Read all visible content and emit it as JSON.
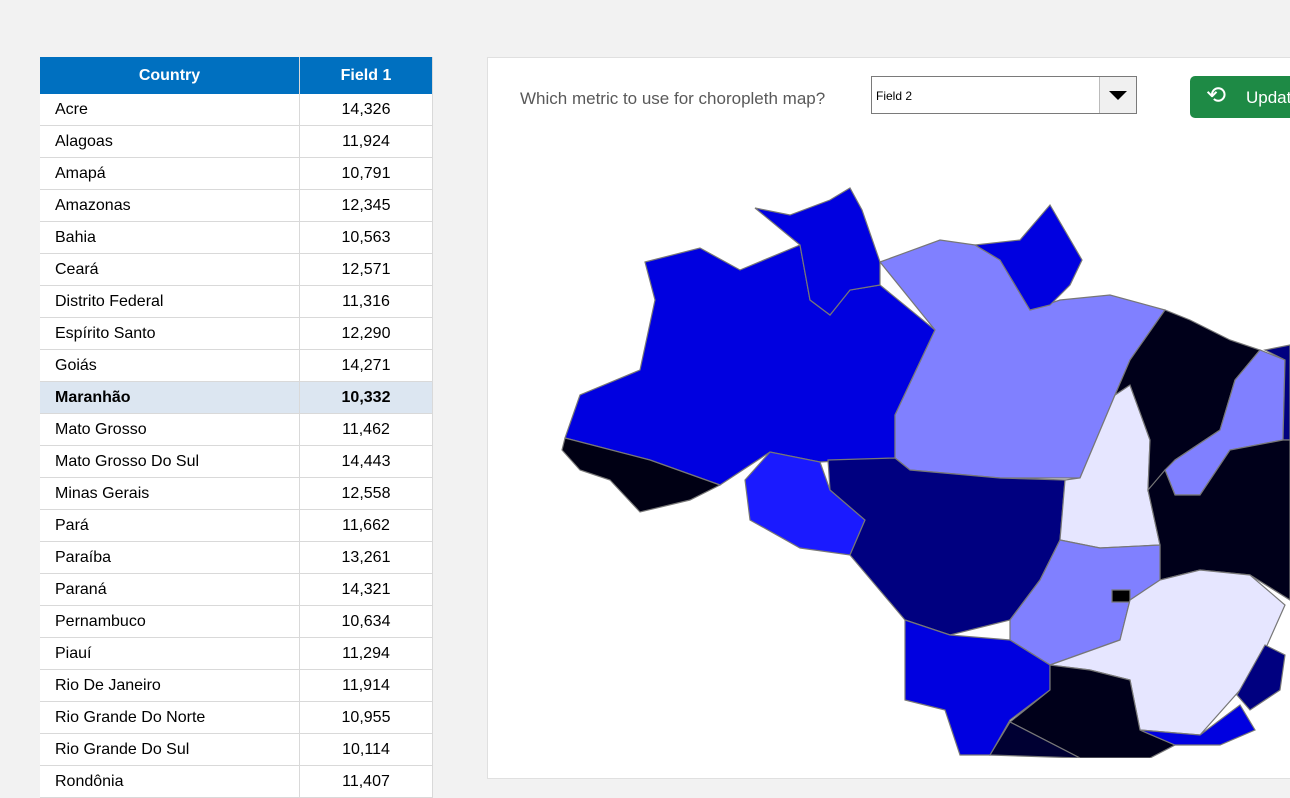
{
  "table": {
    "headers": [
      "Country",
      "Field 1"
    ],
    "selected": "Maranhão",
    "rows": [
      [
        "Acre",
        "14,326"
      ],
      [
        "Alagoas",
        "11,924"
      ],
      [
        "Amapá",
        "10,791"
      ],
      [
        "Amazonas",
        "12,345"
      ],
      [
        "Bahia",
        "10,563"
      ],
      [
        "Ceará",
        "12,571"
      ],
      [
        "Distrito Federal",
        "11,316"
      ],
      [
        "Espírito Santo",
        "12,290"
      ],
      [
        "Goiás",
        "14,271"
      ],
      [
        "Maranhão",
        "10,332"
      ],
      [
        "Mato Grosso",
        "11,462"
      ],
      [
        "Mato Grosso Do Sul",
        "14,443"
      ],
      [
        "Minas Gerais",
        "12,558"
      ],
      [
        "Pará",
        "11,662"
      ],
      [
        "Paraíba",
        "13,261"
      ],
      [
        "Paraná",
        "14,321"
      ],
      [
        "Pernambuco",
        "10,634"
      ],
      [
        "Piauí",
        "11,294"
      ],
      [
        "Rio De Janeiro",
        "11,914"
      ],
      [
        "Rio Grande Do Norte",
        "10,955"
      ],
      [
        "Rio Grande Do Sul",
        "10,114"
      ],
      [
        "Rondônia",
        "11,407"
      ]
    ]
  },
  "controls": {
    "question": "Which metric to use for choropleth map?",
    "metric_selected": "Field 2",
    "update_label": "Update",
    "update_icon": "refresh-icon"
  },
  "map": {
    "colors": {
      "Amazonas": "#0000e0",
      "Acre": "#000014",
      "Roraima": "#0000e0",
      "Pará": "#8080ff",
      "Amapá": "#0000e0",
      "Rondônia": "#1a1aff",
      "Mato Grosso": "#000080",
      "Tocantins": "#e6e6ff",
      "Maranhão": "#00001a",
      "Piauí": "#8080ff",
      "Ceará": "#000080",
      "Bahia": "#00001a",
      "Goiás": "#8080ff",
      "Distrito Federal": "#000000",
      "Minas Gerais": "#e6e6ff",
      "Mato Grosso Do Sul": "#0000e0",
      "Espírito Santo": "#000080",
      "São Paulo": "#00001a",
      "Rio De Janeiro": "#0000e0",
      "Paraná": "#000033"
    }
  }
}
